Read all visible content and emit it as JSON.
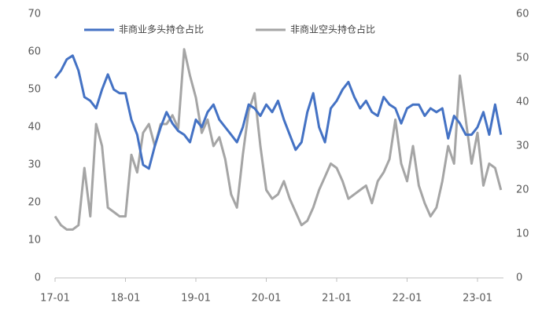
{
  "chart_data": {
    "type": "line",
    "categories": [
      "17-01",
      null,
      null,
      null,
      null,
      null,
      null,
      null,
      null,
      null,
      null,
      null,
      "18-01",
      null,
      null,
      null,
      null,
      null,
      null,
      null,
      null,
      null,
      null,
      null,
      "19-01",
      null,
      null,
      null,
      null,
      null,
      null,
      null,
      null,
      null,
      null,
      null,
      "20-01",
      null,
      null,
      null,
      null,
      null,
      null,
      null,
      null,
      null,
      null,
      null,
      "21-01",
      null,
      null,
      null,
      null,
      null,
      null,
      null,
      null,
      null,
      null,
      null,
      "22-01",
      null,
      null,
      null,
      null,
      null,
      null,
      null,
      null,
      null,
      null,
      null,
      "23-01",
      null,
      null,
      null,
      null
    ],
    "series": [
      {
        "name": "非商业多头持仓占比",
        "color": "#4472c4",
        "axis": "y",
        "values": [
          53,
          55,
          58,
          59,
          55,
          48,
          47,
          45,
          50,
          54,
          50,
          49,
          49,
          42,
          38,
          30,
          29,
          35,
          40,
          44,
          41,
          39,
          38,
          36,
          42,
          40,
          44,
          46,
          42,
          40,
          38,
          36,
          40,
          46,
          45,
          43,
          46,
          44,
          47,
          42,
          38,
          34,
          36,
          44,
          49,
          40,
          36,
          45,
          47,
          50,
          52,
          48,
          45,
          47,
          44,
          43,
          48,
          46,
          45,
          41,
          45,
          46,
          46,
          43,
          45,
          44,
          45,
          37,
          43,
          41,
          38,
          38,
          40,
          44,
          38,
          46,
          38
        ]
      },
      {
        "name": "非商业空头持仓占比",
        "color": "#a5a5a5",
        "axis": "y2",
        "values": [
          14,
          12,
          11,
          11,
          12,
          25,
          14,
          35,
          30,
          16,
          15,
          14,
          14,
          28,
          24,
          33,
          35,
          30,
          35,
          35,
          37,
          34,
          52,
          46,
          41,
          33,
          36,
          30,
          32,
          27,
          19,
          16,
          28,
          38,
          42,
          30,
          20,
          18,
          19,
          22,
          18,
          15,
          12,
          13,
          16,
          20,
          23,
          26,
          25,
          22,
          18,
          19,
          20,
          21,
          17,
          22,
          24,
          27,
          36,
          26,
          22,
          30,
          21,
          17,
          14,
          16,
          22,
          30,
          26,
          46,
          36,
          26,
          33,
          21,
          26,
          25,
          20
        ]
      }
    ],
    "ylim": [
      0,
      70
    ],
    "yticks": [
      0,
      10,
      20,
      30,
      40,
      50,
      60,
      70
    ],
    "y2lim": [
      0,
      60
    ],
    "y2ticks": [
      0,
      10,
      20,
      30,
      40,
      50,
      60
    ]
  }
}
